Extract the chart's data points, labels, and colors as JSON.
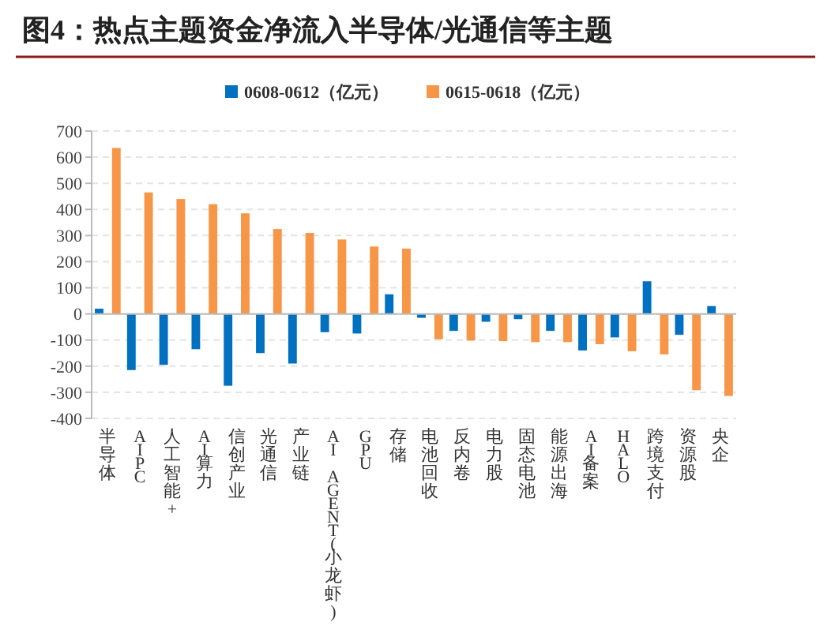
{
  "chart_data": {
    "type": "bar",
    "title": "图4：热点主题资金净流入半导体/光通信等主题",
    "categories": [
      "半导体",
      "AIPC",
      "人工智能+",
      "AI算力",
      "信创产业",
      "光通信",
      "产业链",
      "AI AGENT(小龙虾)",
      "GPU",
      "存储",
      "电池回收",
      "反内卷",
      "电力股",
      "固态电池",
      "能源出海",
      "AI备案",
      "HALO",
      "跨境支付",
      "资源股",
      "央企"
    ],
    "series": [
      {
        "name": "0608-0612（亿元）",
        "color": "#0070c0",
        "values": [
          20,
          -215,
          -195,
          -135,
          -275,
          -150,
          -190,
          -70,
          -75,
          75,
          -15,
          -65,
          -30,
          -20,
          -65,
          -140,
          -90,
          125,
          -80,
          30
        ]
      },
      {
        "name": "0615-0618（亿元）",
        "color": "#f79646",
        "values": [
          635,
          465,
          440,
          420,
          385,
          325,
          310,
          285,
          258,
          250,
          -97,
          -102,
          -104,
          -108,
          -108,
          -116,
          -143,
          -155,
          -292,
          -314
        ]
      }
    ],
    "ylim": [
      -400,
      700
    ],
    "yticks": [
      -400,
      -300,
      -200,
      -100,
      0,
      100,
      200,
      300,
      400,
      500,
      600,
      700
    ],
    "grid": "y",
    "legend": "top"
  }
}
